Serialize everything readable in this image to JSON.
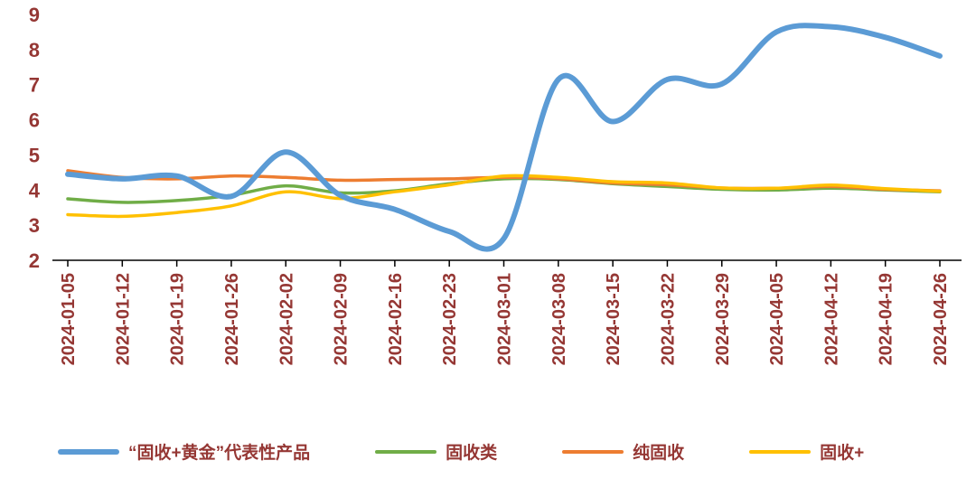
{
  "chart_data": {
    "type": "line",
    "title": "",
    "xlabel": "",
    "ylabel": "",
    "ylim": [
      2,
      9
    ],
    "ytick_step": 1,
    "grid": false,
    "legend_position": "bottom",
    "axis_text_color": "#953734",
    "axis_line_color": "#000000",
    "x": [
      "2024-01-05",
      "2024-01-12",
      "2024-01-19",
      "2024-01-26",
      "2024-02-02",
      "2024-02-09",
      "2024-02-16",
      "2024-02-23",
      "2024-03-01",
      "2024-03-08",
      "2024-03-15",
      "2024-03-22",
      "2024-03-29",
      "2024-04-05",
      "2024-04-12",
      "2024-04-19",
      "2024-04-26"
    ],
    "yticks": [
      2,
      3,
      4,
      5,
      6,
      7,
      8,
      9
    ],
    "series": [
      {
        "name": "“固收+黄金”代表性产品",
        "color": "#5B9BD5",
        "width": 6,
        "values": [
          4.45,
          4.32,
          4.4,
          3.82,
          5.08,
          3.85,
          3.45,
          2.82,
          2.62,
          7.15,
          5.95,
          7.15,
          7.02,
          8.5,
          8.65,
          8.35,
          7.82
        ]
      },
      {
        "name": "固收类",
        "color": "#70AD47",
        "width": 3.5,
        "values": [
          3.75,
          3.65,
          3.7,
          3.85,
          4.12,
          3.92,
          3.98,
          4.18,
          4.32,
          4.3,
          4.18,
          4.1,
          4.02,
          4.0,
          4.05,
          4.0,
          3.95
        ]
      },
      {
        "name": "纯固收",
        "color": "#ED7D31",
        "width": 3.5,
        "values": [
          4.55,
          4.36,
          4.32,
          4.4,
          4.36,
          4.28,
          4.3,
          4.32,
          4.36,
          4.32,
          4.2,
          4.15,
          4.06,
          4.05,
          4.1,
          4.02,
          3.98
        ]
      },
      {
        "name": "固收+",
        "color": "#FFC000",
        "width": 3.5,
        "values": [
          3.3,
          3.25,
          3.36,
          3.55,
          3.95,
          3.76,
          3.95,
          4.15,
          4.4,
          4.36,
          4.24,
          4.2,
          4.06,
          4.05,
          4.14,
          4.04,
          3.96
        ]
      }
    ]
  }
}
